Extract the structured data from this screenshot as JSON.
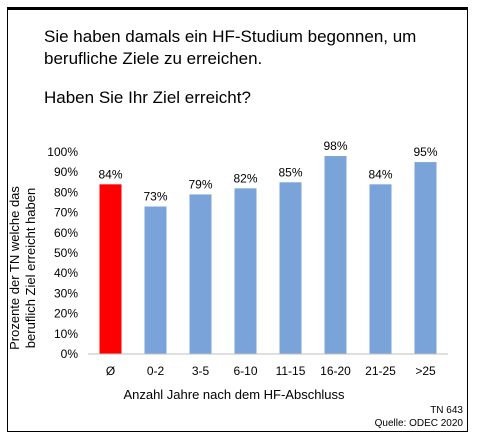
{
  "question_line1": "Sie haben damals ein HF-Studium begonnen, um berufliche Ziele zu erreichen.",
  "question_line2": "Haben Sie Ihr Ziel erreicht?",
  "footer": {
    "tn": "TN 643",
    "source": "Quelle: ODEC 2020"
  },
  "chart_data": {
    "type": "bar",
    "categories": [
      "Ø",
      "0-2",
      "3-5",
      "6-10",
      "11-15",
      "16-20",
      "21-25",
      ">25"
    ],
    "values": [
      84,
      73,
      79,
      82,
      85,
      98,
      84,
      95
    ],
    "data_labels": [
      "84%",
      "73%",
      "79%",
      "82%",
      "85%",
      "98%",
      "84%",
      "95%"
    ],
    "bar_colors": [
      "#ff0000",
      "#7aa3d9",
      "#7aa3d9",
      "#7aa3d9",
      "#7aa3d9",
      "#7aa3d9",
      "#7aa3d9",
      "#7aa3d9"
    ],
    "xlabel": "Anzahl Jahre nach dem HF-Abschluss",
    "ylabel_lines": [
      "Prozente der TN welche das",
      "beruflich Ziel erreicht haben"
    ],
    "ylim": [
      0,
      100
    ],
    "yticks": [
      "0%",
      "10%",
      "20%",
      "30%",
      "40%",
      "50%",
      "60%",
      "70%",
      "80%",
      "90%",
      "100%"
    ],
    "grid": false
  }
}
